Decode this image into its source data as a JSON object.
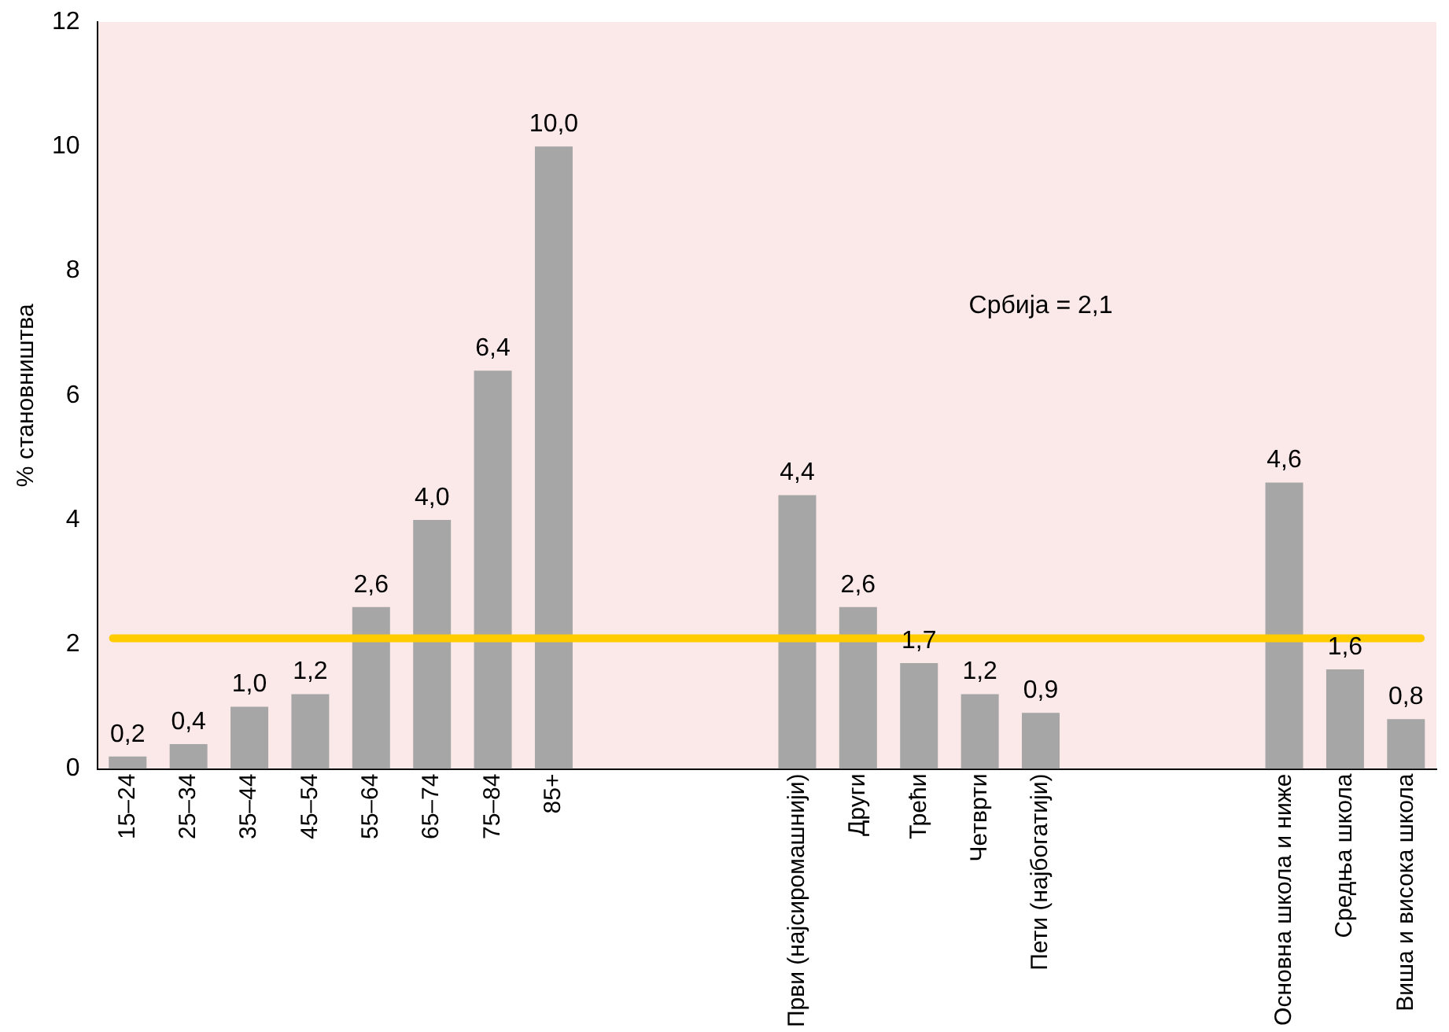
{
  "chart_data": {
    "type": "bar",
    "ylabel": "% становништва",
    "categories": [
      "15–24",
      "25–34",
      "35–44",
      "45–54",
      "55–64",
      "65–74",
      "75–84",
      "85+",
      null,
      null,
      null,
      "Први (најсиромашнији)",
      "Други",
      "Трећи",
      "Четврти",
      "Пети (најбогатији)",
      null,
      null,
      null,
      "Основна школа и ниже",
      "Средња школа",
      "Виша и висока школа"
    ],
    "values": [
      0.2,
      0.4,
      1.0,
      1.2,
      2.6,
      4.0,
      6.4,
      10.0,
      null,
      null,
      null,
      4.4,
      2.6,
      1.7,
      1.2,
      0.9,
      null,
      null,
      null,
      4.6,
      1.6,
      0.8
    ],
    "value_labels": [
      "0,2",
      "0,4",
      "1,0",
      "1,2",
      "2,6",
      "4,0",
      "6,4",
      "10,0",
      null,
      null,
      null,
      "4,4",
      "2,6",
      "1,7",
      "1,2",
      "0,9",
      null,
      null,
      null,
      "4,6",
      "1,6",
      "0,8"
    ],
    "color": "#a6a6a6",
    "ylim": [
      0,
      12
    ],
    "yticks": [
      0,
      2,
      4,
      6,
      8,
      10,
      12
    ],
    "grid": false,
    "annotations": [
      "Србија = 2,1"
    ],
    "ref_lines": [
      {
        "axis": "y",
        "value": 2.1,
        "color": "#ffcc00"
      }
    ]
  }
}
